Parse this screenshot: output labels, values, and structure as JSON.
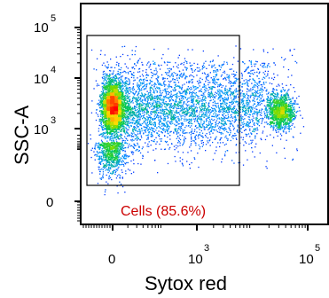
{
  "chart_data": {
    "type": "scatter",
    "plot_style": "density-colored flow cytometry dot plot",
    "xlabel": "Sytox red",
    "ylabel": "SSC-A",
    "x_scale": "biexponential",
    "y_scale": "biexponential",
    "x_ticks": [
      {
        "base": "0",
        "exp": "",
        "value": 0
      },
      {
        "base": "10",
        "exp": "3",
        "value": 1000
      },
      {
        "base": "10",
        "exp": "5",
        "value": 100000
      }
    ],
    "y_ticks": [
      {
        "base": "0",
        "exp": "",
        "value": 0
      },
      {
        "base": "10",
        "exp": "3",
        "value": 1000
      },
      {
        "base": "10",
        "exp": "4",
        "value": 10000
      },
      {
        "base": "10",
        "exp": "5",
        "value": 100000
      }
    ],
    "populations": [
      {
        "description": "dense main cluster (Sytox red negative)",
        "x_center": 0,
        "y_center": 1200,
        "density": "high"
      },
      {
        "description": "smear of events across Sytox red",
        "x_range": [
          0,
          3000
        ],
        "y_range": [
          300,
          10000
        ],
        "density": "medium"
      },
      {
        "description": "Sytox red high cluster",
        "x_center": 30000,
        "y_center": 2000,
        "density": "medium"
      }
    ],
    "gate": {
      "shape": "rectangle",
      "label": "Cells (85.6%)",
      "x_range": [
        -100,
        3000
      ],
      "y_range": [
        30,
        70000
      ]
    },
    "colors": {
      "gate_label": "#cc0000",
      "density_low": "#0000ff",
      "density_mid": "#00cc33",
      "density_high": "#ff0000"
    },
    "grid": false,
    "legend": "none"
  }
}
